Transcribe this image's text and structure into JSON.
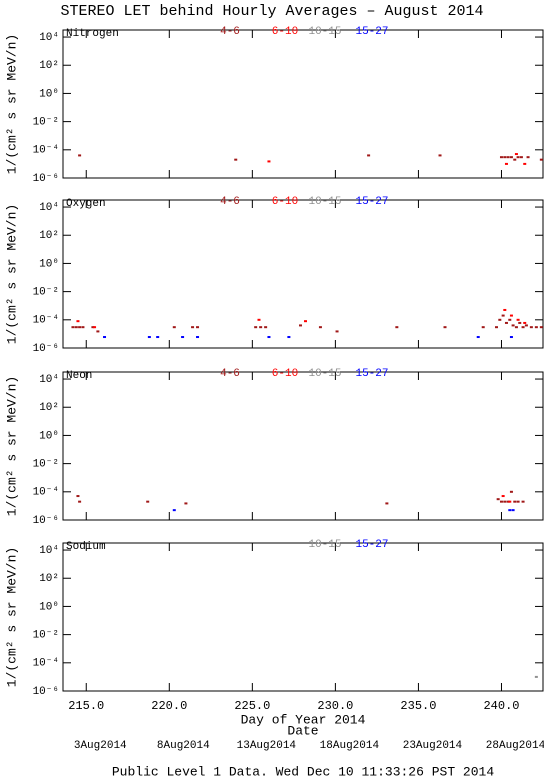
{
  "title": "STEREO LET behind Hourly Averages – August 2014",
  "footer": "Public Level 1 Data. Wed Dec 10 11:33:26 PST 2014",
  "x_axis": {
    "label": "Day of Year 2014",
    "xlim": [
      213.6,
      242.5
    ],
    "xticks": [
      {
        "value": 215,
        "label": "215.0"
      },
      {
        "value": 220,
        "label": "220.0"
      },
      {
        "value": 225,
        "label": "225.0"
      },
      {
        "value": 230,
        "label": "230.0"
      },
      {
        "value": 235,
        "label": "235.0"
      },
      {
        "value": 240,
        "label": "240.0"
      }
    ]
  },
  "date_axis": {
    "label": "Date",
    "ticks": [
      {
        "value": 215,
        "label": "3Aug2014"
      },
      {
        "value": 220,
        "label": "8Aug2014"
      },
      {
        "value": 225,
        "label": "13Aug2014"
      },
      {
        "value": 230,
        "label": "18Aug2014"
      },
      {
        "value": 235,
        "label": "23Aug2014"
      },
      {
        "value": 240,
        "label": "28Aug2014"
      }
    ]
  },
  "chart_data": [
    {
      "type": "scatter",
      "title": "Nitrogen",
      "ylabel": "1/(cm² s sr MeV/n)",
      "log_y": true,
      "ylim": [
        1e-06,
        31623
      ],
      "yticks": [
        {
          "value": 10000,
          "label": "10⁴"
        },
        {
          "value": 100,
          "label": "10²"
        },
        {
          "value": 1,
          "label": "10⁰"
        },
        {
          "value": 0.01,
          "label": "10⁻²"
        },
        {
          "value": 0.0001,
          "label": "10⁻⁴"
        },
        {
          "value": 1e-06,
          "label": "10⁻⁶"
        }
      ],
      "series": [
        {
          "name": "4-6",
          "color": "#a01818",
          "x": [
            214.6,
            224.0,
            232.0,
            236.3,
            240.0,
            240.2,
            240.4,
            240.6,
            240.8,
            241.0,
            241.2,
            241.6,
            242.4
          ],
          "values": [
            4e-05,
            2e-05,
            4e-05,
            4e-05,
            3e-05,
            3e-05,
            3e-05,
            3e-05,
            2e-05,
            3e-05,
            3e-05,
            3e-05,
            2e-05
          ]
        },
        {
          "name": "6-10",
          "color": "#ff0000",
          "x": [
            226.0,
            240.3,
            240.9,
            241.4
          ],
          "values": [
            1.5e-05,
            1e-05,
            5e-05,
            1e-05
          ]
        },
        {
          "name": "10-15",
          "color": "#909090",
          "x": [],
          "values": []
        },
        {
          "name": "15-27",
          "color": "#0000ff",
          "x": [],
          "values": []
        }
      ]
    },
    {
      "type": "scatter",
      "title": "Oxygen",
      "ylabel": "1/(cm² s sr MeV/n)",
      "log_y": true,
      "ylim": [
        1e-06,
        31623
      ],
      "yticks": [
        {
          "value": 10000,
          "label": "10⁴"
        },
        {
          "value": 100,
          "label": "10²"
        },
        {
          "value": 1,
          "label": "10⁰"
        },
        {
          "value": 0.01,
          "label": "10⁻²"
        },
        {
          "value": 0.0001,
          "label": "10⁻⁴"
        },
        {
          "value": 1e-06,
          "label": "10⁻⁶"
        }
      ],
      "series": [
        {
          "name": "4-6",
          "color": "#a01818",
          "x": [
            214.2,
            214.4,
            214.6,
            214.8,
            215.4,
            215.7,
            220.3,
            221.4,
            221.7,
            225.2,
            225.5,
            225.8,
            227.9,
            229.1,
            230.1,
            233.7,
            236.6,
            238.9,
            239.7,
            239.9,
            240.1,
            240.3,
            240.5,
            240.7,
            240.9,
            241.1,
            241.3,
            241.5,
            241.8,
            242.1,
            242.4
          ],
          "values": [
            3e-05,
            3e-05,
            3e-05,
            3e-05,
            3e-05,
            1.5e-05,
            3e-05,
            3e-05,
            3e-05,
            3e-05,
            3e-05,
            3e-05,
            4e-05,
            3e-05,
            1.5e-05,
            3e-05,
            3e-05,
            3e-05,
            3e-05,
            0.0001,
            0.0002,
            6e-05,
            0.0001,
            4e-05,
            3e-05,
            6e-05,
            3e-05,
            4e-05,
            3e-05,
            3e-05,
            3e-05
          ]
        },
        {
          "name": "6-10",
          "color": "#ff0000",
          "x": [
            214.5,
            215.5,
            225.4,
            228.2,
            240.2,
            240.6,
            241.0,
            241.4
          ],
          "values": [
            8e-05,
            3e-05,
            0.0001,
            8e-05,
            0.0005,
            0.0002,
            0.0001,
            6e-05
          ]
        },
        {
          "name": "10-15",
          "color": "#909090",
          "x": [],
          "values": []
        },
        {
          "name": "15-27",
          "color": "#0000ff",
          "x": [
            216.1,
            218.8,
            219.3,
            220.8,
            221.7,
            226.0,
            227.2,
            238.6,
            240.6
          ],
          "values": [
            6e-06,
            6e-06,
            6e-06,
            6e-06,
            6e-06,
            6e-06,
            6e-06,
            6e-06,
            6e-06
          ]
        }
      ]
    },
    {
      "type": "scatter",
      "title": "Neon",
      "ylabel": "1/(cm² s sr MeV/n)",
      "log_y": true,
      "ylim": [
        1e-06,
        31623
      ],
      "yticks": [
        {
          "value": 10000,
          "label": "10⁴"
        },
        {
          "value": 100,
          "label": "10²"
        },
        {
          "value": 1,
          "label": "10⁰"
        },
        {
          "value": 0.01,
          "label": "10⁻²"
        },
        {
          "value": 0.0001,
          "label": "10⁻⁴"
        },
        {
          "value": 1e-06,
          "label": "10⁻⁶"
        }
      ],
      "series": [
        {
          "name": "4-6",
          "color": "#a01818",
          "x": [
            214.5,
            214.6,
            218.7,
            221.0,
            233.1,
            239.8,
            240.0,
            240.2,
            240.4,
            240.6,
            240.8,
            241.0,
            241.3
          ],
          "values": [
            5e-05,
            2e-05,
            2e-05,
            1.5e-05,
            1.5e-05,
            3e-05,
            2e-05,
            2e-05,
            2e-05,
            0.0001,
            2e-05,
            2e-05,
            2e-05
          ]
        },
        {
          "name": "6-10",
          "color": "#ff0000",
          "x": [
            240.1,
            240.5
          ],
          "values": [
            5e-05,
            2e-05
          ]
        },
        {
          "name": "10-15",
          "color": "#909090",
          "x": [],
          "values": []
        },
        {
          "name": "15-27",
          "color": "#0000ff",
          "x": [
            220.3,
            240.5,
            240.7
          ],
          "values": [
            5e-06,
            5e-06,
            5e-06
          ]
        }
      ]
    },
    {
      "type": "scatter",
      "title": "Sodium",
      "ylabel": "1/(cm² s sr MeV/n)",
      "log_y": true,
      "ylim": [
        1e-06,
        31623
      ],
      "yticks": [
        {
          "value": 10000,
          "label": "10⁴"
        },
        {
          "value": 100,
          "label": "10²"
        },
        {
          "value": 1,
          "label": "10⁰"
        },
        {
          "value": 0.01,
          "label": "10⁻²"
        },
        {
          "value": 0.0001,
          "label": "10⁻⁴"
        },
        {
          "value": 1e-06,
          "label": "10⁻⁶"
        }
      ],
      "series": [
        {
          "name": "10-15",
          "color": "#909090",
          "x": [
            242.1
          ],
          "values": [
            1e-05
          ]
        },
        {
          "name": "15-27",
          "color": "#0000ff",
          "x": [],
          "values": []
        }
      ]
    }
  ]
}
